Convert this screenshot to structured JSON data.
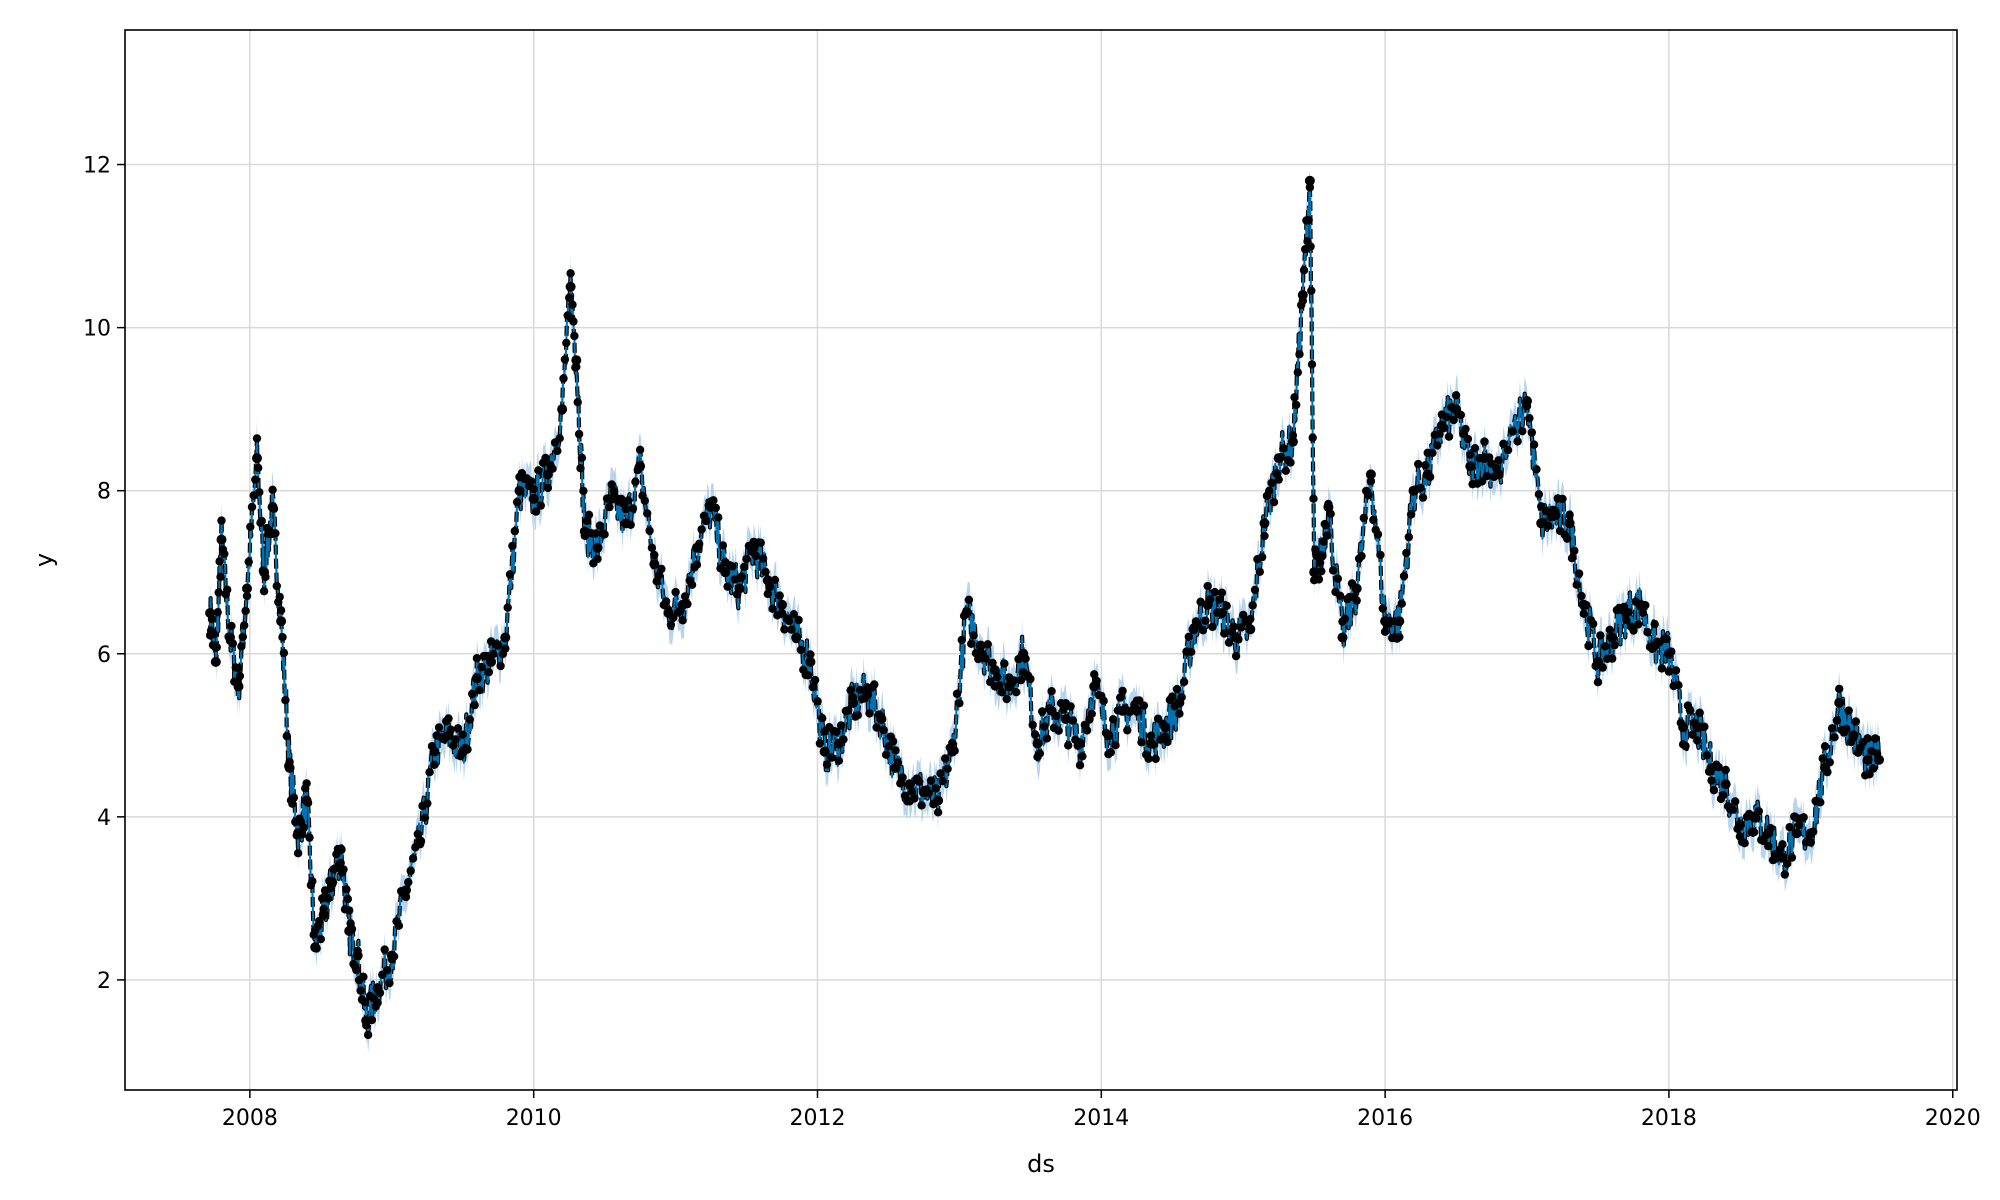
{
  "chart_data": {
    "type": "line",
    "title": "",
    "xlabel": "ds",
    "ylabel": "y",
    "xlim": [
      2007.12,
      2020.03
    ],
    "ylim": [
      0.65,
      13.65
    ],
    "xticks": [
      2008,
      2010,
      2012,
      2014,
      2016,
      2018,
      2020
    ],
    "xtick_labels": [
      "2008",
      "2010",
      "2012",
      "2014",
      "2016",
      "2018",
      "2020"
    ],
    "yticks": [
      2,
      4,
      6,
      8,
      10,
      12
    ],
    "ytick_labels": [
      "2",
      "4",
      "6",
      "8",
      "10",
      "12"
    ],
    "grid": true,
    "legend": "none",
    "colors": {
      "observed": "#000000",
      "forecast": "#0072B2",
      "interval": "#9ec5e8",
      "grid": "#d9d9d9"
    },
    "series": [
      {
        "role": "observed points and forecast line with uncertainty band",
        "x": [
          2007.72,
          2007.76,
          2007.8,
          2007.86,
          2007.92,
          2007.98,
          2008.05,
          2008.1,
          2008.16,
          2008.22,
          2008.28,
          2008.34,
          2008.4,
          2008.46,
          2008.52,
          2008.58,
          2008.64,
          2008.7,
          2008.76,
          2008.82,
          2008.9,
          2009.0,
          2009.1,
          2009.2,
          2009.3,
          2009.4,
          2009.5,
          2009.6,
          2009.7,
          2009.8,
          2009.9,
          2010.0,
          2010.1,
          2010.2,
          2010.26,
          2010.3,
          2010.36,
          2010.45,
          2010.55,
          2010.65,
          2010.75,
          2010.85,
          2010.95,
          2011.05,
          2011.15,
          2011.25,
          2011.35,
          2011.45,
          2011.55,
          2011.65,
          2011.75,
          2011.85,
          2011.95,
          2012.05,
          2012.15,
          2012.25,
          2012.35,
          2012.45,
          2012.55,
          2012.65,
          2012.75,
          2012.85,
          2012.95,
          2013.05,
          2013.15,
          2013.25,
          2013.35,
          2013.45,
          2013.55,
          2013.65,
          2013.75,
          2013.85,
          2013.95,
          2014.05,
          2014.15,
          2014.25,
          2014.35,
          2014.45,
          2014.55,
          2014.65,
          2014.75,
          2014.85,
          2014.95,
          2015.05,
          2015.15,
          2015.25,
          2015.35,
          2015.42,
          2015.47,
          2015.5,
          2015.55,
          2015.6,
          2015.7,
          2015.8,
          2015.9,
          2016.0,
          2016.1,
          2016.2,
          2016.3,
          2016.4,
          2016.5,
          2016.6,
          2016.7,
          2016.8,
          2017.0,
          2017.1,
          2017.2,
          2017.3,
          2017.4,
          2017.5,
          2017.6,
          2017.7,
          2017.8,
          2017.9,
          2018.0,
          2018.1,
          2018.2,
          2018.3,
          2018.4,
          2018.5,
          2018.6,
          2018.7,
          2018.8,
          2018.9,
          2019.0,
          2019.1,
          2019.2,
          2019.3,
          2019.4,
          2019.48
        ],
        "y": [
          6.5,
          5.9,
          7.4,
          6.2,
          5.6,
          6.8,
          8.4,
          7.0,
          7.8,
          6.4,
          4.6,
          3.8,
          4.2,
          2.4,
          2.8,
          3.2,
          3.6,
          2.6,
          2.3,
          1.5,
          1.9,
          2.3,
          3.1,
          3.7,
          4.8,
          5.0,
          4.8,
          5.7,
          5.9,
          6.2,
          8.0,
          7.9,
          8.2,
          9.0,
          10.5,
          9.6,
          7.5,
          7.3,
          7.9,
          7.6,
          8.3,
          7.1,
          6.5,
          6.6,
          7.3,
          7.8,
          7.0,
          6.8,
          7.3,
          6.9,
          6.6,
          6.2,
          5.9,
          4.8,
          4.9,
          5.4,
          5.5,
          5.2,
          4.6,
          4.4,
          4.3,
          4.2,
          4.8,
          6.5,
          6.1,
          5.8,
          5.6,
          6.0,
          4.9,
          5.3,
          5.2,
          4.9,
          5.6,
          5.0,
          5.3,
          5.3,
          4.9,
          5.1,
          5.4,
          6.3,
          6.6,
          6.5,
          6.2,
          6.3,
          7.6,
          8.4,
          8.6,
          10.4,
          11.8,
          7.0,
          7.2,
          7.8,
          6.2,
          6.8,
          8.2,
          6.4,
          6.4,
          8.0,
          8.2,
          8.8,
          9.0,
          8.3,
          8.4,
          8.2,
          9.1,
          7.6,
          7.7,
          7.6,
          6.6,
          5.9,
          6.2,
          6.5,
          6.6,
          6.1,
          6.0,
          5.1,
          5.1,
          4.6,
          4.4,
          3.9,
          4.0,
          3.8,
          3.5,
          3.8,
          3.8,
          4.6,
          5.4,
          5.0,
          4.7,
          4.7
        ]
      }
    ]
  }
}
